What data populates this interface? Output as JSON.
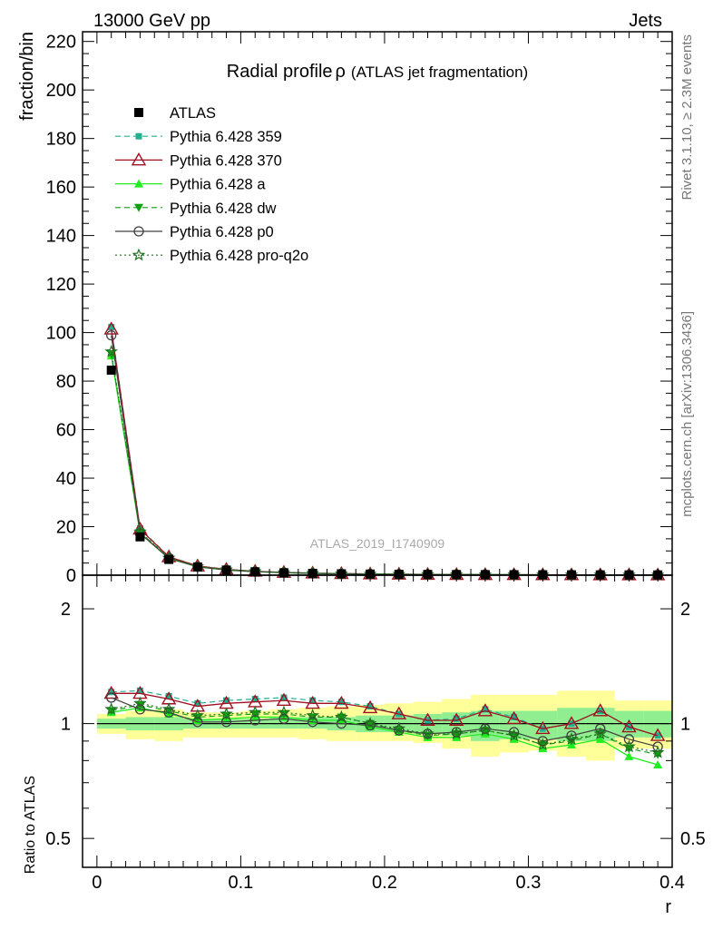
{
  "header": {
    "left": "13000 GeV pp",
    "right": "Jets"
  },
  "side_labels": {
    "rivet": "Rivet 3.1.10, ≥ 2.3M events",
    "mcplots": "mcplots.cern.ch [arXiv:1306.3436]"
  },
  "watermark": "ATLAS_2019_I1740909",
  "colors": {
    "atlas": "#000000",
    "p359": "#20b090",
    "p370": "#a01020",
    "pa": "#20ee20",
    "pdw": "#10a010",
    "pp0": "#404040",
    "pq2o": "#207020",
    "band_green": "#90ee90",
    "band_yellow": "#ffff99"
  },
  "chart_data": [
    {
      "type": "line",
      "title": "Radial profileρ (ATLAS jet fragmentation)",
      "title_main": "Radial profile",
      "title_rho": "ρ",
      "title_paren": "(ATLAS jet fragmentation)",
      "xlabel": "",
      "ylabel": "fraction/bin",
      "xlim": [
        -0.01,
        0.4
      ],
      "ylim": [
        0,
        224
      ],
      "y_ticks": [
        "0",
        "20",
        "40",
        "60",
        "80",
        "100",
        "120",
        "140",
        "160",
        "180",
        "200",
        "220"
      ],
      "legend_position": "top-left",
      "legend": [
        {
          "label": "ATLAS",
          "style": "atlas"
        },
        {
          "label": "Pythia 6.428 359",
          "style": "p359"
        },
        {
          "label": "Pythia 6.428 370",
          "style": "p370"
        },
        {
          "label": "Pythia 6.428 a",
          "style": "pa"
        },
        {
          "label": "Pythia 6.428 dw",
          "style": "pdw"
        },
        {
          "label": "Pythia 6.428 p0",
          "style": "pp0"
        },
        {
          "label": "Pythia 6.428 pro-q2o",
          "style": "pq2o"
        }
      ],
      "x": [
        0.01,
        0.03,
        0.05,
        0.07,
        0.09,
        0.11,
        0.13,
        0.15,
        0.17,
        0.19,
        0.21,
        0.23,
        0.25,
        0.27,
        0.29,
        0.31,
        0.33,
        0.35,
        0.37,
        0.39
      ],
      "atlas": [
        84.5,
        15.8,
        6.5,
        3.4,
        2.1,
        1.4,
        1.0,
        0.75,
        0.57,
        0.45,
        0.37,
        0.31,
        0.26,
        0.22,
        0.19,
        0.17,
        0.15,
        0.13,
        0.12,
        0.11
      ]
    },
    {
      "type": "line",
      "title": "",
      "xlabel": "r",
      "ylabel": "Ratio to ATLAS",
      "xlim": [
        -0.01,
        0.4
      ],
      "ylim": [
        0.42,
        2.45
      ],
      "y_scale": "log",
      "y_ticks": [
        "0.5",
        "1",
        "2"
      ],
      "x_ticks": [
        "0",
        "0.1",
        "0.2",
        "0.3",
        "0.4"
      ],
      "x": [
        0.01,
        0.03,
        0.05,
        0.07,
        0.09,
        0.11,
        0.13,
        0.15,
        0.17,
        0.19,
        0.21,
        0.23,
        0.25,
        0.27,
        0.29,
        0.31,
        0.33,
        0.35,
        0.37,
        0.39
      ],
      "band_edges": [
        0.0,
        0.02,
        0.04,
        0.06,
        0.08,
        0.1,
        0.12,
        0.14,
        0.16,
        0.18,
        0.2,
        0.22,
        0.24,
        0.26,
        0.28,
        0.3,
        0.32,
        0.34,
        0.36,
        0.38,
        0.4
      ],
      "band_green": [
        [
          0.97,
          1.03
        ],
        [
          0.96,
          1.04
        ],
        [
          0.96,
          1.04
        ],
        [
          0.97,
          1.03
        ],
        [
          0.97,
          1.03
        ],
        [
          0.97,
          1.03
        ],
        [
          0.97,
          1.04
        ],
        [
          0.97,
          1.04
        ],
        [
          0.96,
          1.04
        ],
        [
          0.95,
          1.05
        ],
        [
          0.95,
          1.05
        ],
        [
          0.94,
          1.06
        ],
        [
          0.93,
          1.07
        ],
        [
          0.9,
          1.08
        ],
        [
          0.91,
          1.08
        ],
        [
          0.91,
          1.08
        ],
        [
          0.9,
          1.1
        ],
        [
          0.9,
          1.1
        ],
        [
          0.92,
          1.08
        ],
        [
          0.92,
          1.08
        ]
      ],
      "band_yellow": [
        [
          0.94,
          1.06
        ],
        [
          0.91,
          1.08
        ],
        [
          0.9,
          1.09
        ],
        [
          0.92,
          1.07
        ],
        [
          0.92,
          1.07
        ],
        [
          0.92,
          1.08
        ],
        [
          0.92,
          1.09
        ],
        [
          0.91,
          1.1
        ],
        [
          0.9,
          1.11
        ],
        [
          0.9,
          1.12
        ],
        [
          0.9,
          1.13
        ],
        [
          0.89,
          1.14
        ],
        [
          0.86,
          1.16
        ],
        [
          0.82,
          1.19
        ],
        [
          0.84,
          1.19
        ],
        [
          0.85,
          1.19
        ],
        [
          0.82,
          1.22
        ],
        [
          0.8,
          1.22
        ],
        [
          0.86,
          1.15
        ],
        [
          0.86,
          1.15
        ]
      ],
      "series": [
        {
          "name": "Pythia 6.428 359",
          "style": "p359",
          "values": [
            1.21,
            1.22,
            1.18,
            1.13,
            1.15,
            1.16,
            1.17,
            1.15,
            1.14,
            1.11,
            1.06,
            1.02,
            1.03,
            1.09,
            1.04,
            0.97,
            1.0,
            1.08,
            0.98,
            0.93
          ]
        },
        {
          "name": "Pythia 6.428 370",
          "style": "p370",
          "values": [
            1.2,
            1.2,
            1.16,
            1.11,
            1.13,
            1.14,
            1.15,
            1.13,
            1.13,
            1.1,
            1.06,
            1.02,
            1.02,
            1.08,
            1.03,
            0.97,
            1.0,
            1.08,
            0.98,
            0.93
          ]
        },
        {
          "name": "Pythia 6.428 a",
          "style": "pa",
          "values": [
            1.07,
            1.1,
            1.06,
            1.02,
            1.03,
            1.04,
            1.04,
            1.02,
            1.02,
            0.98,
            0.95,
            0.92,
            0.92,
            0.94,
            0.91,
            0.86,
            0.88,
            0.91,
            0.82,
            0.78
          ]
        },
        {
          "name": "Pythia 6.428 dw",
          "style": "pdw",
          "values": [
            1.08,
            1.12,
            1.08,
            1.04,
            1.05,
            1.06,
            1.06,
            1.04,
            1.04,
            1.0,
            0.96,
            0.93,
            0.94,
            0.96,
            0.93,
            0.88,
            0.9,
            0.94,
            0.86,
            0.83
          ]
        },
        {
          "name": "Pythia 6.428 p0",
          "style": "pp0",
          "values": [
            1.17,
            1.09,
            1.07,
            1.01,
            1.01,
            1.02,
            1.03,
            1.01,
            1.0,
            0.99,
            0.96,
            0.94,
            0.95,
            0.97,
            0.95,
            0.9,
            0.93,
            0.97,
            0.91,
            0.87
          ]
        },
        {
          "name": "Pythia 6.428 pro-q2o",
          "style": "pq2o",
          "values": [
            1.09,
            1.13,
            1.09,
            1.05,
            1.06,
            1.07,
            1.07,
            1.05,
            1.04,
            1.0,
            0.97,
            0.94,
            0.94,
            0.96,
            0.93,
            0.88,
            0.91,
            0.94,
            0.87,
            0.84
          ]
        }
      ]
    }
  ]
}
